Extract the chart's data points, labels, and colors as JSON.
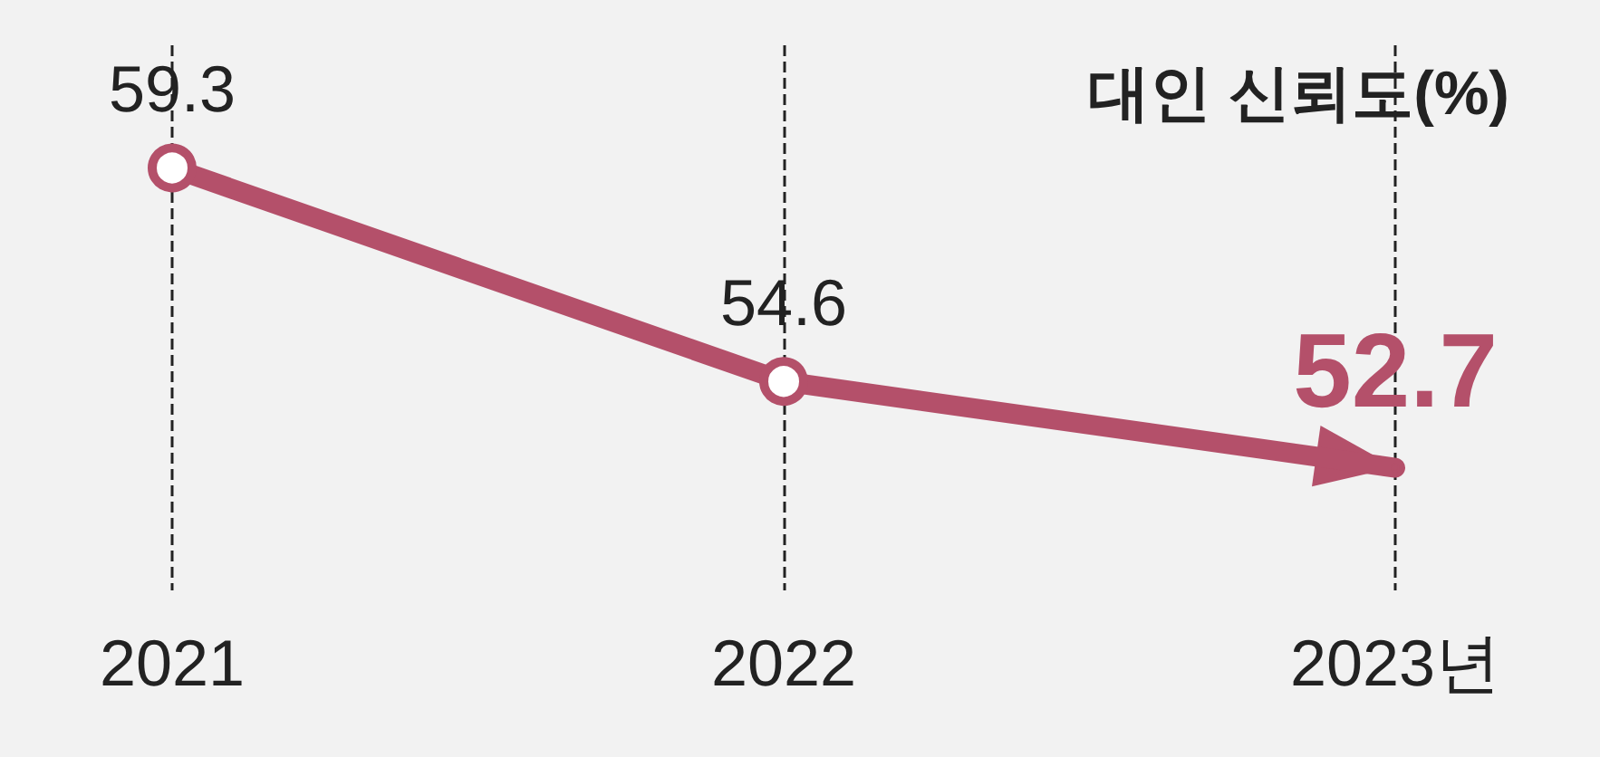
{
  "chart_data": {
    "type": "line",
    "title": "대인 신뢰도(%)",
    "categories": [
      "2021",
      "2022",
      "2023년"
    ],
    "series": [
      {
        "color": "#b4506a",
        "values": [
          59.3,
          54.6,
          52.7
        ]
      }
    ],
    "ylim": [
      50,
      62
    ],
    "tick_labels": "x",
    "data_labels": true,
    "grid": "x",
    "marker": "circle",
    "line_style": "solid"
  }
}
